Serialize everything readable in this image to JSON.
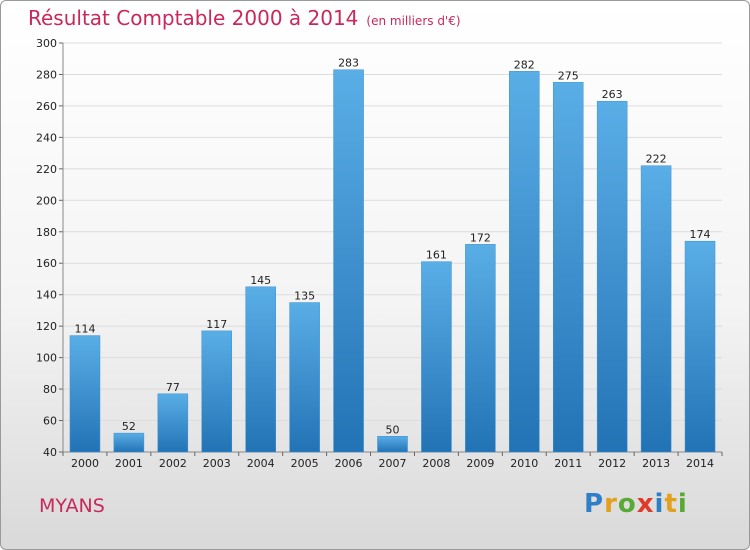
{
  "header": {
    "title": "Résultat Comptable 2000 à 2014",
    "subtitle": "(en milliers d'€)"
  },
  "footer": {
    "commune": "MYANS",
    "logo_letters": [
      "P",
      "r",
      "o",
      "x",
      "i",
      "t",
      "i"
    ]
  },
  "colors": {
    "accent": "#c8285a",
    "bar_top": "#5aaee6",
    "bar_bottom": "#2273b5"
  },
  "chart_data": {
    "type": "bar",
    "title": "Résultat Comptable 2000 à 2014",
    "subtitle": "(en milliers d'€)",
    "categories": [
      "2000",
      "2001",
      "2002",
      "2003",
      "2004",
      "2005",
      "2006",
      "2007",
      "2008",
      "2009",
      "2010",
      "2011",
      "2012",
      "2013",
      "2014"
    ],
    "values": [
      114,
      52,
      77,
      117,
      145,
      135,
      283,
      50,
      161,
      172,
      282,
      275,
      263,
      222,
      174
    ],
    "ylim": [
      40,
      300
    ],
    "yticks": [
      40,
      60,
      80,
      100,
      120,
      140,
      160,
      180,
      200,
      220,
      240,
      260,
      280,
      300
    ],
    "grid": true,
    "legend": "none"
  }
}
